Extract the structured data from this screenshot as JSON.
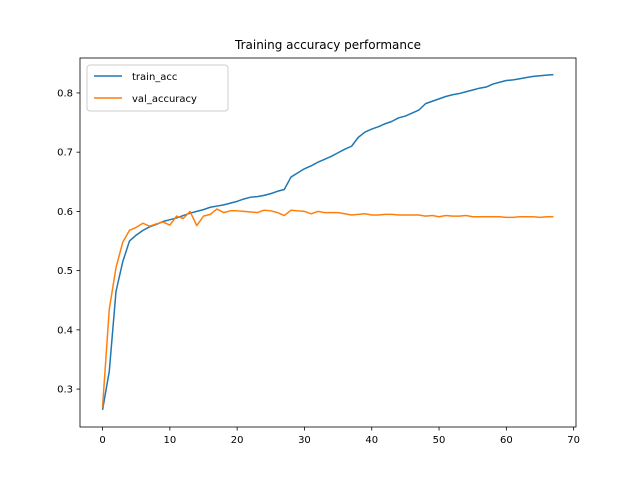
{
  "chart_data": {
    "type": "line",
    "title": "Training accuracy performance",
    "xlabel": "",
    "ylabel": "",
    "xlim": [
      -3.35,
      70.35
    ],
    "ylim": [
      0.236,
      0.859
    ],
    "xticks": [
      0,
      10,
      20,
      30,
      40,
      50,
      60,
      70
    ],
    "yticks": [
      0.3,
      0.4,
      0.5,
      0.6,
      0.7,
      0.8
    ],
    "ytick_labels": [
      "0.3",
      "0.4",
      "0.5",
      "0.6",
      "0.7",
      "0.8"
    ],
    "grid": false,
    "legend_position": "top-left",
    "x": [
      0,
      1,
      2,
      3,
      4,
      5,
      6,
      7,
      8,
      9,
      10,
      11,
      12,
      13,
      14,
      15,
      16,
      17,
      18,
      19,
      20,
      21,
      22,
      23,
      24,
      25,
      26,
      27,
      28,
      29,
      30,
      31,
      32,
      33,
      34,
      35,
      36,
      37,
      38,
      39,
      40,
      41,
      42,
      43,
      44,
      45,
      46,
      47,
      48,
      49,
      50,
      51,
      52,
      53,
      54,
      55,
      56,
      57,
      58,
      59,
      60,
      61,
      62,
      63,
      64,
      65,
      66,
      67
    ],
    "series": [
      {
        "name": "train_acc",
        "color": "#1f77b4",
        "values": [
          0.265,
          0.33,
          0.465,
          0.515,
          0.55,
          0.56,
          0.568,
          0.574,
          0.578,
          0.583,
          0.586,
          0.589,
          0.593,
          0.597,
          0.6,
          0.603,
          0.607,
          0.609,
          0.611,
          0.614,
          0.617,
          0.621,
          0.624,
          0.625,
          0.627,
          0.63,
          0.634,
          0.637,
          0.658,
          0.665,
          0.672,
          0.677,
          0.683,
          0.688,
          0.693,
          0.699,
          0.705,
          0.71,
          0.725,
          0.734,
          0.739,
          0.743,
          0.748,
          0.752,
          0.758,
          0.761,
          0.766,
          0.771,
          0.782,
          0.786,
          0.79,
          0.794,
          0.797,
          0.799,
          0.802,
          0.805,
          0.808,
          0.81,
          0.815,
          0.818,
          0.821,
          0.822,
          0.824,
          0.826,
          0.828,
          0.829,
          0.83,
          0.831
        ]
      },
      {
        "name": "val_accuracy",
        "color": "#ff7f0e",
        "values": [
          0.27,
          0.435,
          0.505,
          0.548,
          0.568,
          0.573,
          0.58,
          0.575,
          0.579,
          0.582,
          0.577,
          0.592,
          0.588,
          0.6,
          0.576,
          0.592,
          0.595,
          0.604,
          0.598,
          0.601,
          0.601,
          0.6,
          0.599,
          0.598,
          0.602,
          0.601,
          0.598,
          0.593,
          0.602,
          0.601,
          0.6,
          0.596,
          0.6,
          0.598,
          0.598,
          0.598,
          0.596,
          0.594,
          0.595,
          0.596,
          0.594,
          0.594,
          0.595,
          0.595,
          0.594,
          0.594,
          0.594,
          0.594,
          0.592,
          0.593,
          0.591,
          0.593,
          0.592,
          0.592,
          0.593,
          0.591,
          0.591,
          0.591,
          0.591,
          0.591,
          0.59,
          0.59,
          0.591,
          0.591,
          0.591,
          0.59,
          0.591,
          0.591
        ]
      }
    ]
  }
}
